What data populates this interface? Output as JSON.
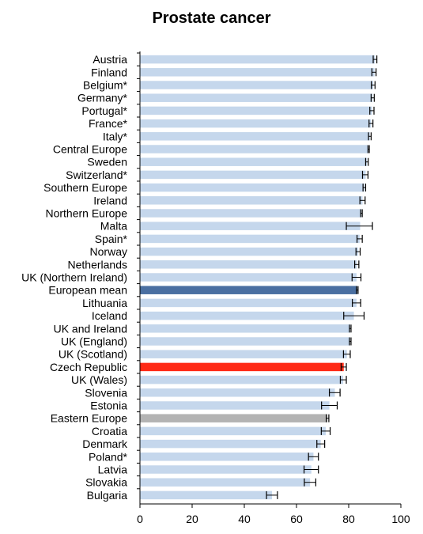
{
  "chart_data": {
    "type": "bar",
    "orientation": "horizontal",
    "title": "Prostate cancer",
    "xlabel": "",
    "ylabel": "",
    "xlim": [
      0,
      100
    ],
    "xticks": [
      0,
      20,
      40,
      60,
      80,
      100
    ],
    "grid": false,
    "legend": "none",
    "colors": {
      "default": "#c5d7ec",
      "European mean": "#4a6fa1",
      "Czech Republic": "#ff2a16",
      "Eastern Europe": "#b3b3b3",
      "error_bar": "#000000"
    },
    "categories": [
      "Austria",
      "Finland",
      "Belgium*",
      "Germany*",
      "Portugal*",
      "France*",
      "Italy*",
      "Central Europe",
      "Sweden",
      "Switzerland*",
      "Southern Europe",
      "Ireland",
      "Northern Europe",
      "Malta",
      "Spain*",
      "Norway",
      "Netherlands",
      "UK (Northern Ireland)",
      "European mean",
      "Lithuania",
      "Iceland",
      "UK and Ireland",
      "UK (England)",
      "UK (Scotland)",
      "Czech Republic",
      "UK (Wales)",
      "Slovenia",
      "Estonia",
      "Eastern Europe",
      "Croatia",
      "Denmark",
      "Poland*",
      "Latvia",
      "Slovakia",
      "Bulgaria"
    ],
    "values": [
      90.1,
      89.9,
      89.4,
      89.2,
      89.0,
      88.6,
      88.1,
      87.6,
      87.0,
      86.5,
      86.0,
      85.3,
      84.9,
      84.4,
      84.2,
      83.6,
      83.1,
      83.0,
      83.3,
      83.0,
      82.0,
      80.6,
      80.6,
      79.3,
      78.1,
      77.9,
      74.7,
      72.6,
      71.9,
      71.2,
      69.3,
      66.5,
      65.7,
      65.2,
      50.6
    ],
    "ci_low": [
      89.4,
      88.9,
      88.7,
      88.6,
      88.1,
      87.8,
      87.6,
      87.4,
      86.5,
      85.3,
      85.5,
      84.3,
      84.6,
      79.1,
      83.2,
      82.8,
      82.3,
      81.3,
      83.0,
      81.4,
      78.1,
      80.3,
      80.3,
      78.0,
      77.1,
      76.8,
      72.6,
      69.6,
      71.4,
      69.5,
      67.8,
      64.6,
      62.9,
      63.0,
      48.5
    ],
    "ci_high": [
      90.8,
      90.5,
      90.1,
      89.8,
      89.7,
      89.3,
      88.6,
      87.9,
      87.5,
      87.4,
      86.5,
      86.3,
      85.2,
      89.1,
      85.2,
      84.4,
      83.9,
      84.7,
      83.6,
      84.6,
      85.9,
      80.9,
      80.9,
      80.6,
      79.1,
      79.1,
      76.7,
      75.6,
      72.4,
      72.9,
      70.8,
      68.4,
      68.4,
      67.4,
      52.7
    ]
  }
}
